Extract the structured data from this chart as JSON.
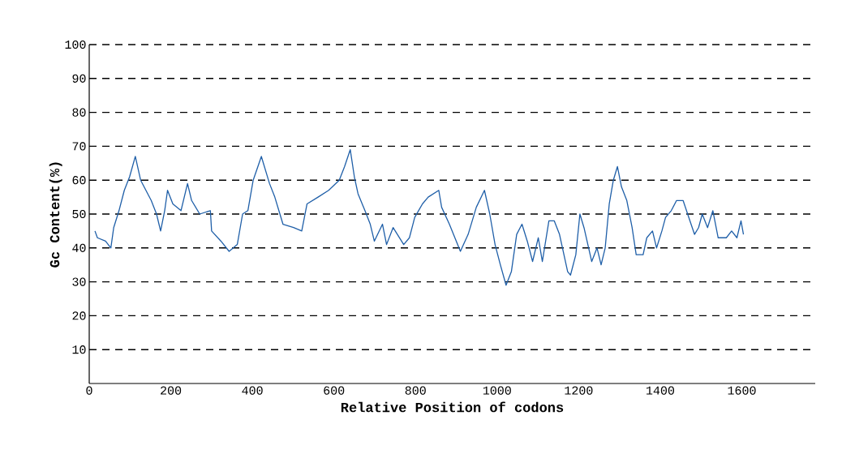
{
  "chart_data": {
    "type": "line",
    "xlabel": "Relative Position of codons",
    "ylabel": "Gc Content(%)",
    "xlim": [
      0,
      1780
    ],
    "ylim": [
      0,
      100
    ],
    "xticks": [
      0,
      200,
      400,
      600,
      800,
      1000,
      1200,
      1400,
      1600
    ],
    "yticks": [
      10,
      20,
      30,
      40,
      50,
      60,
      70,
      80,
      90,
      100
    ],
    "grid": "y",
    "series": [
      {
        "color": "#1f5fa8",
        "x": [
          14,
          20,
          40,
          53,
          60,
          73,
          86,
          99,
          113,
          126,
          139,
          152,
          165,
          175,
          185,
          192,
          205,
          225,
          241,
          251,
          271,
          297,
          300,
          323,
          343,
          363,
          376,
          389,
          402,
          422,
          442,
          455,
          475,
          501,
          521,
          534,
          561,
          587,
          613,
          626,
          640,
          650,
          659,
          676,
          689,
          699,
          719,
          729,
          745,
          771,
          785,
          798,
          817,
          831,
          857,
          864,
          883,
          910,
          929,
          949,
          969,
          982,
          995,
          1008,
          1022,
          1035,
          1048,
          1061,
          1074,
          1087,
          1101,
          1111,
          1127,
          1140,
          1153,
          1173,
          1180,
          1193,
          1203,
          1213,
          1232,
          1245,
          1255,
          1265,
          1275,
          1285,
          1295,
          1305,
          1318,
          1331,
          1341,
          1358,
          1367,
          1381,
          1391,
          1404,
          1413,
          1427,
          1440,
          1456,
          1470,
          1484,
          1494,
          1503,
          1516,
          1529,
          1542,
          1562,
          1575,
          1588,
          1598,
          1604
        ],
        "values": [
          45,
          43,
          42,
          40,
          46,
          51,
          57,
          61,
          67,
          60,
          57,
          54,
          50,
          45,
          51,
          57,
          53,
          51,
          59,
          54,
          50,
          51,
          45,
          42,
          39,
          41,
          50,
          51,
          60,
          67,
          59,
          55,
          47,
          46,
          45,
          53,
          55,
          57,
          60,
          64,
          69,
          61,
          56,
          51,
          47,
          42,
          47,
          41,
          46,
          41,
          43,
          49,
          53,
          55,
          57,
          52,
          47,
          39,
          44,
          52,
          57,
          50,
          41,
          35,
          29,
          33,
          44,
          47,
          42,
          36,
          43,
          36,
          48,
          48,
          44,
          33,
          32,
          38,
          50,
          46,
          36,
          40,
          35,
          40,
          53,
          60,
          64,
          58,
          54,
          46,
          38,
          38,
          43,
          45,
          40,
          45,
          49,
          51,
          54,
          54,
          49,
          44,
          46,
          50,
          46,
          51,
          43,
          43,
          45,
          43,
          48,
          44
        ]
      }
    ]
  }
}
